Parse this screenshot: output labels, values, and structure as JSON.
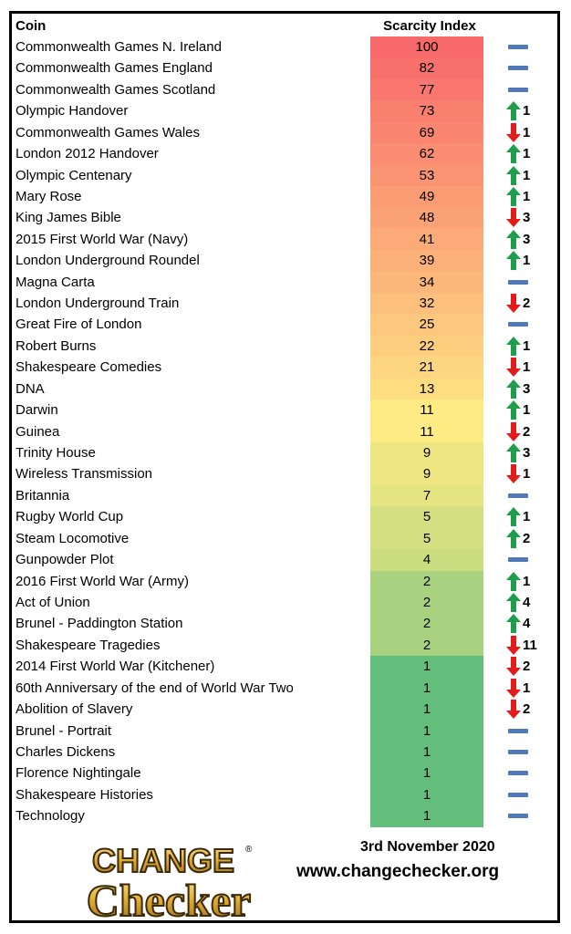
{
  "chart_data": {
    "type": "table",
    "columns": [
      "Coin",
      "Scarcity Index"
    ],
    "rows": [
      {
        "coin": "Commonwealth Games N. Ireland",
        "index": 100,
        "change": "same",
        "amount": ""
      },
      {
        "coin": "Commonwealth Games England",
        "index": 82,
        "change": "same",
        "amount": ""
      },
      {
        "coin": "Commonwealth Games Scotland",
        "index": 77,
        "change": "same",
        "amount": ""
      },
      {
        "coin": "Olympic Handover",
        "index": 73,
        "change": "up",
        "amount": "1"
      },
      {
        "coin": "Commonwealth Games Wales",
        "index": 69,
        "change": "down",
        "amount": "1"
      },
      {
        "coin": "London 2012 Handover",
        "index": 62,
        "change": "up",
        "amount": "1"
      },
      {
        "coin": "Olympic Centenary",
        "index": 53,
        "change": "up",
        "amount": "1"
      },
      {
        "coin": "Mary Rose",
        "index": 49,
        "change": "up",
        "amount": "1"
      },
      {
        "coin": "King James Bible",
        "index": 48,
        "change": "down",
        "amount": "3"
      },
      {
        "coin": "2015 First World War (Navy)",
        "index": 41,
        "change": "up",
        "amount": "3"
      },
      {
        "coin": "London Underground Roundel",
        "index": 39,
        "change": "up",
        "amount": "1"
      },
      {
        "coin": "Magna Carta",
        "index": 34,
        "change": "same",
        "amount": ""
      },
      {
        "coin": "London Underground Train",
        "index": 32,
        "change": "down",
        "amount": "2"
      },
      {
        "coin": "Great Fire of London",
        "index": 25,
        "change": "same",
        "amount": ""
      },
      {
        "coin": "Robert Burns",
        "index": 22,
        "change": "up",
        "amount": "1"
      },
      {
        "coin": "Shakespeare Comedies",
        "index": 21,
        "change": "down",
        "amount": "1"
      },
      {
        "coin": "DNA",
        "index": 13,
        "change": "up",
        "amount": "3"
      },
      {
        "coin": "Darwin",
        "index": 11,
        "change": "up",
        "amount": "1"
      },
      {
        "coin": "Guinea",
        "index": 11,
        "change": "down",
        "amount": "2"
      },
      {
        "coin": "Trinity House",
        "index": 9,
        "change": "up",
        "amount": "3"
      },
      {
        "coin": "Wireless Transmission",
        "index": 9,
        "change": "down",
        "amount": "1"
      },
      {
        "coin": "Britannia",
        "index": 7,
        "change": "same",
        "amount": ""
      },
      {
        "coin": "Rugby World Cup",
        "index": 5,
        "change": "up",
        "amount": "1"
      },
      {
        "coin": "Steam Locomotive",
        "index": 5,
        "change": "up",
        "amount": "2"
      },
      {
        "coin": "Gunpowder Plot",
        "index": 4,
        "change": "same",
        "amount": ""
      },
      {
        "coin": "2016 First World War (Army)",
        "index": 2,
        "change": "up",
        "amount": "1"
      },
      {
        "coin": "Act of Union",
        "index": 2,
        "change": "up",
        "amount": "4"
      },
      {
        "coin": "Brunel - Paddington Station",
        "index": 2,
        "change": "up",
        "amount": "4"
      },
      {
        "coin": "Shakespeare Tragedies",
        "index": 2,
        "change": "down",
        "amount": "11"
      },
      {
        "coin": "2014 First World War (Kitchener)",
        "index": 1,
        "change": "down",
        "amount": "2"
      },
      {
        "coin": "60th Anniversary of the end of World War Two",
        "index": 1,
        "change": "down",
        "amount": "1"
      },
      {
        "coin": "Abolition of Slavery",
        "index": 1,
        "change": "down",
        "amount": "2"
      },
      {
        "coin": "Brunel - Portrait",
        "index": 1,
        "change": "same",
        "amount": ""
      },
      {
        "coin": "Charles Dickens",
        "index": 1,
        "change": "same",
        "amount": ""
      },
      {
        "coin": "Florence Nightingale",
        "index": 1,
        "change": "same",
        "amount": ""
      },
      {
        "coin": "Shakespeare Histories",
        "index": 1,
        "change": "same",
        "amount": ""
      },
      {
        "coin": "Technology",
        "index": 1,
        "change": "same",
        "amount": ""
      }
    ],
    "color_scale": {
      "high": "#f8696b",
      "mid": "#ffeb84",
      "low": "#63be7b"
    },
    "legend": "none",
    "grid": false
  },
  "header": {
    "coin": "Coin",
    "index": "Scarcity Index"
  },
  "colors": {
    "up": "#1e9e4a",
    "down": "#e31b1b",
    "same": "#4f79b8"
  },
  "footer": {
    "date": "3rd November 2020",
    "url": "www.changechecker.org",
    "logo_line1": "CHANGE",
    "logo_line2": "Checker"
  }
}
